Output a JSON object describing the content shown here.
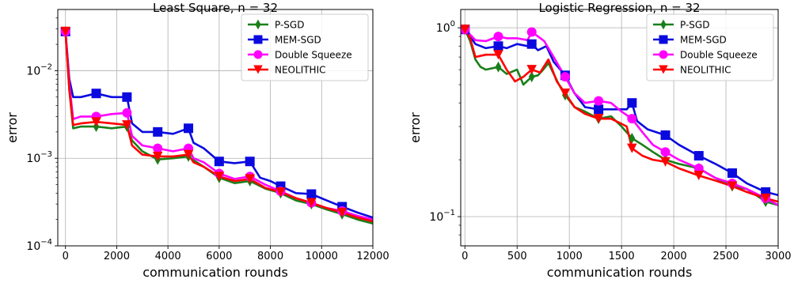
{
  "chart_data": [
    {
      "type": "line",
      "title": "Least Square, n = 32",
      "xlabel": "communication rounds",
      "ylabel": "error",
      "xlim": [
        -300,
        12000
      ],
      "ylim": [
        0.0001,
        0.05
      ],
      "yscale": "log",
      "grid": true,
      "legend_position": "top-right",
      "xticks": [
        0,
        2000,
        4000,
        6000,
        8000,
        10000,
        12000
      ],
      "xtick_labels": [
        "0",
        "2000",
        "4000",
        "6000",
        "8000",
        "10000",
        "12000"
      ],
      "yticks": [
        0.0001,
        0.001,
        0.01
      ],
      "ytick_labels": [
        {
          "base": "10",
          "exp": "−4"
        },
        {
          "base": "10",
          "exp": "−3"
        },
        {
          "base": "10",
          "exp": "−2"
        }
      ],
      "series": [
        {
          "name": "P-SGD",
          "color": "#1a7f1a",
          "marker": "diamond",
          "x": [
            0,
            150,
            300,
            600,
            1200,
            1800,
            2400,
            2600,
            3000,
            3600,
            4200,
            4800,
            5000,
            5400,
            6000,
            6600,
            7200,
            7800,
            8400,
            9000,
            9600,
            10200,
            10800,
            11400,
            12000
          ],
          "y": [
            0.028,
            0.006,
            0.0022,
            0.0023,
            0.0023,
            0.0022,
            0.0023,
            0.0016,
            0.0012,
            0.00097,
            0.001,
            0.00105,
            0.00095,
            0.0008,
            0.0006,
            0.00052,
            0.00055,
            0.00045,
            0.0004,
            0.00033,
            0.0003,
            0.00026,
            0.00023,
            0.0002,
            0.00018
          ],
          "marker_x": [
            0,
            1200,
            2400,
            3600,
            4800,
            6000,
            7200,
            8400,
            9600,
            10800
          ]
        },
        {
          "name": "MEM-SGD",
          "color": "#0a0adf",
          "marker": "square",
          "x": [
            0,
            150,
            300,
            600,
            1200,
            1800,
            2400,
            2600,
            3000,
            3600,
            4200,
            4800,
            5000,
            5400,
            6000,
            6600,
            7200,
            7600,
            8000,
            8400,
            9000,
            9600,
            10200,
            10800,
            11400,
            12000
          ],
          "y": [
            0.028,
            0.008,
            0.005,
            0.005,
            0.0055,
            0.005,
            0.005,
            0.0025,
            0.002,
            0.002,
            0.0019,
            0.0022,
            0.0015,
            0.0013,
            0.00092,
            0.00088,
            0.00092,
            0.0006,
            0.00055,
            0.00048,
            0.0004,
            0.00039,
            0.00033,
            0.00028,
            0.00024,
            0.00021
          ],
          "marker_x": [
            0,
            1200,
            2400,
            3600,
            4800,
            6000,
            7200,
            8400,
            9600,
            10800
          ]
        },
        {
          "name": "Double Squeeze",
          "color": "#ff00ff",
          "marker": "circle",
          "x": [
            0,
            150,
            300,
            600,
            1200,
            1800,
            2400,
            2600,
            3000,
            3600,
            4200,
            4800,
            5000,
            5400,
            6000,
            6600,
            7200,
            7800,
            8400,
            9000,
            9600,
            10200,
            10800,
            11400,
            12000
          ],
          "y": [
            0.028,
            0.007,
            0.0028,
            0.003,
            0.003,
            0.0032,
            0.0033,
            0.0018,
            0.0014,
            0.0013,
            0.0012,
            0.0013,
            0.001,
            0.0009,
            0.00067,
            0.00058,
            0.00062,
            0.0005,
            0.00042,
            0.00035,
            0.00031,
            0.00027,
            0.00025,
            0.00022,
            0.0002
          ],
          "marker_x": [
            0,
            1200,
            2400,
            3600,
            4800,
            6000,
            7200,
            8400,
            9600,
            10800
          ]
        },
        {
          "name": "NEOLITHIC",
          "color": "#ff0000",
          "marker": "triangle-down",
          "x": [
            0,
            150,
            300,
            600,
            1200,
            1800,
            2400,
            2600,
            3000,
            3600,
            4200,
            4800,
            5000,
            5400,
            6000,
            6600,
            7200,
            7800,
            8400,
            9000,
            9600,
            10200,
            10800,
            11400,
            12000
          ],
          "y": [
            0.028,
            0.006,
            0.0024,
            0.0025,
            0.0026,
            0.0025,
            0.0024,
            0.0014,
            0.0011,
            0.00105,
            0.00105,
            0.0011,
            0.0009,
            0.0008,
            0.00062,
            0.00055,
            0.00058,
            0.00046,
            0.00041,
            0.00035,
            0.00031,
            0.00027,
            0.00024,
            0.00021,
            0.00019
          ],
          "marker_x": [
            0,
            1200,
            2400,
            3600,
            4800,
            6000,
            7200,
            8400,
            9600,
            10800
          ]
        }
      ]
    },
    {
      "type": "line",
      "title": "Logistic Regression, n = 32",
      "xlabel": "communication rounds",
      "ylabel": "error",
      "xlim": [
        -40,
        3000
      ],
      "ylim": [
        0.07,
        1.25
      ],
      "yscale": "log",
      "grid": true,
      "legend_position": "top-right",
      "xticks": [
        0,
        500,
        1000,
        1500,
        2000,
        2500,
        3000
      ],
      "xtick_labels": [
        "0",
        "500",
        "1000",
        "1500",
        "2000",
        "2500",
        "3000"
      ],
      "yticks": [
        0.1,
        1
      ],
      "ytick_labels": [
        {
          "base": "10",
          "exp": "−1"
        },
        {
          "base": "10",
          "exp": "0"
        }
      ],
      "series": [
        {
          "name": "P-SGD",
          "color": "#1a7f1a",
          "marker": "diamond",
          "x": [
            0,
            50,
            100,
            150,
            200,
            320,
            400,
            500,
            560,
            640,
            700,
            750,
            800,
            900,
            960,
            1050,
            1150,
            1280,
            1400,
            1500,
            1600,
            1700,
            1800,
            1920,
            2050,
            2240,
            2400,
            2560,
            2700,
            2880,
            3000
          ],
          "y": [
            0.98,
            0.85,
            0.68,
            0.62,
            0.6,
            0.62,
            0.57,
            0.6,
            0.5,
            0.55,
            0.56,
            0.6,
            0.65,
            0.5,
            0.44,
            0.38,
            0.36,
            0.33,
            0.34,
            0.3,
            0.26,
            0.24,
            0.22,
            0.2,
            0.19,
            0.18,
            0.16,
            0.145,
            0.14,
            0.12,
            0.115
          ],
          "marker_x": [
            0,
            320,
            640,
            960,
            1280,
            1600,
            1920,
            2240,
            2560,
            2880
          ]
        },
        {
          "name": "MEM-SGD",
          "color": "#0a0adf",
          "marker": "square",
          "x": [
            0,
            50,
            100,
            200,
            320,
            400,
            500,
            600,
            640,
            700,
            780,
            850,
            960,
            1050,
            1150,
            1280,
            1400,
            1550,
            1600,
            1650,
            1750,
            1920,
            2050,
            2240,
            2400,
            2560,
            2700,
            2880,
            3000
          ],
          "y": [
            0.98,
            0.9,
            0.82,
            0.78,
            0.8,
            0.78,
            0.82,
            0.8,
            0.82,
            0.76,
            0.8,
            0.66,
            0.56,
            0.45,
            0.38,
            0.37,
            0.37,
            0.37,
            0.4,
            0.32,
            0.29,
            0.27,
            0.24,
            0.21,
            0.19,
            0.17,
            0.15,
            0.135,
            0.13
          ],
          "marker_x": [
            0,
            320,
            640,
            960,
            1280,
            1600,
            1920,
            2240,
            2560,
            2880
          ]
        },
        {
          "name": "Double Squeeze",
          "color": "#ff00ff",
          "marker": "circle",
          "x": [
            0,
            50,
            100,
            200,
            320,
            400,
            500,
            600,
            640,
            700,
            760,
            850,
            960,
            1050,
            1150,
            1280,
            1400,
            1500,
            1600,
            1700,
            1800,
            1920,
            2050,
            2240,
            2400,
            2560,
            2700,
            2880,
            3000
          ],
          "y": [
            0.98,
            0.92,
            0.86,
            0.85,
            0.9,
            0.88,
            0.88,
            0.86,
            0.95,
            0.9,
            0.85,
            0.7,
            0.55,
            0.45,
            0.4,
            0.41,
            0.4,
            0.36,
            0.33,
            0.28,
            0.24,
            0.22,
            0.2,
            0.18,
            0.16,
            0.15,
            0.14,
            0.125,
            0.115
          ],
          "marker_x": [
            0,
            320,
            640,
            960,
            1280,
            1600,
            1920,
            2240,
            2560,
            2880
          ]
        },
        {
          "name": "NEOLITHIC",
          "color": "#ff0000",
          "marker": "triangle-down",
          "x": [
            0,
            50,
            100,
            200,
            320,
            400,
            480,
            560,
            640,
            720,
            800,
            880,
            960,
            1050,
            1150,
            1280,
            1400,
            1500,
            1550,
            1600,
            1700,
            1800,
            1920,
            2050,
            2240,
            2400,
            2560,
            2700,
            2880,
            3000
          ],
          "y": [
            0.98,
            0.88,
            0.7,
            0.72,
            0.72,
            0.6,
            0.52,
            0.55,
            0.6,
            0.58,
            0.68,
            0.52,
            0.45,
            0.38,
            0.35,
            0.33,
            0.33,
            0.31,
            0.3,
            0.23,
            0.21,
            0.2,
            0.195,
            0.18,
            0.165,
            0.155,
            0.145,
            0.135,
            0.125,
            0.12
          ],
          "marker_x": [
            0,
            320,
            640,
            960,
            1280,
            1600,
            1920,
            2240,
            2560,
            2880
          ]
        }
      ]
    }
  ]
}
